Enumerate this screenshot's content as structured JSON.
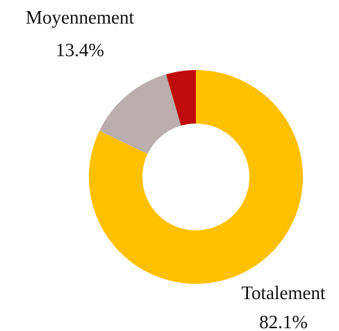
{
  "chart_data": {
    "type": "donut",
    "categories": [
      "Totalement",
      "Moyennement",
      null
    ],
    "values": [
      82.1,
      13.4,
      4.5
    ],
    "value_labels": [
      "82.1%",
      "13.4%",
      null
    ],
    "colors": [
      "#FFC000",
      "#BAAEAE",
      "#C00C0C"
    ]
  }
}
